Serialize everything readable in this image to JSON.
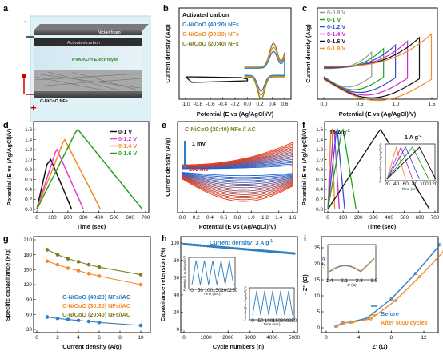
{
  "panels": {
    "a": {
      "label": "a",
      "minus": "-",
      "plus": "+",
      "layers": [
        "Nickel foam",
        "Activated carbon",
        "PVA/KOH Electrolyte",
        "C-NiCoO NFs"
      ]
    },
    "b": {
      "label": "b",
      "xlabel": "Potential (E vs (Ag/AgCl)/V)",
      "ylabel": "Current density (A/g)",
      "xticks": [
        "-1.0",
        "-0.8",
        "-0.6",
        "-0.4",
        "-0.2",
        "0.0",
        "0.2",
        "0.4",
        "0.6"
      ],
      "legend": [
        {
          "text": "Activated carbon",
          "color": "#111111"
        },
        {
          "text": "C-NiCoO (40:20) NFs",
          "color": "#2f7fc1"
        },
        {
          "text": "C-NiCoO (30:30) NFs",
          "color": "#f28c28"
        },
        {
          "text": "C-NiCoO (20:40) NFs",
          "color": "#7f7f1f"
        }
      ]
    },
    "c": {
      "label": "c",
      "xlabel": "Potential (E vs (Ag/AgCl)/V)",
      "ylabel": "Current density (A/g)",
      "xticks": [
        "0.0",
        "0.5",
        "1.0",
        "1.5"
      ],
      "legend": [
        {
          "text": "0-0.8 V",
          "color": "#999999"
        },
        {
          "text": "0-1 V",
          "color": "#1fa31f"
        },
        {
          "text": "0-1.2 V",
          "color": "#2f4fd8"
        },
        {
          "text": "0-1.4 V",
          "color": "#d02ad0"
        },
        {
          "text": "0-1.6 V",
          "color": "#111111"
        },
        {
          "text": "0-1.8 V",
          "color": "#f28c28"
        }
      ]
    },
    "d": {
      "label": "d",
      "xlabel": "Time (sec)",
      "ylabel": "Potential (E vs (Ag/AgCl)/V)",
      "xticks": [
        "0",
        "100",
        "200",
        "300",
        "400",
        "500",
        "600",
        "700"
      ],
      "yticks": [
        "0.0",
        "0.2",
        "0.4",
        "0.6",
        "0.8",
        "1.0",
        "1.2",
        "1.4",
        "1.6"
      ],
      "legend": [
        {
          "text": "0-1 V",
          "color": "#111111"
        },
        {
          "text": "0-1.2 V",
          "color": "#e83cc8"
        },
        {
          "text": "0-1.4 V",
          "color": "#f28c28"
        },
        {
          "text": "0-1.6 V",
          "color": "#1fa31f"
        }
      ]
    },
    "e": {
      "label": "e",
      "title": "C-NiCoO (20:40) NFs // AC",
      "xlabel": "Potential (E vs (Ag/AgCl)/V)",
      "ylabel": "Current density (A/g)",
      "xticks": [
        "0.0",
        "0.2",
        "0.4",
        "0.6",
        "0.8",
        "1.0",
        "1.2",
        "1.4",
        "1.6"
      ],
      "annot_low": "1 mV",
      "annot_high": "100 mV"
    },
    "f": {
      "label": "f",
      "xlabel": "Time (sec)",
      "ylabel": "Potential (E vs (Ag/AgCl)/V)",
      "xticks": [
        "0",
        "100",
        "200",
        "300",
        "400",
        "500",
        "600",
        "700"
      ],
      "yticks": [
        "0.0",
        "0.2",
        "0.4",
        "0.6",
        "0.8",
        "1.0",
        "1.2",
        "1.4",
        "1.6"
      ],
      "annot_high": "10 A g",
      "annot_low": "1 A g",
      "sup": "-1",
      "inset_xlabel": "Time (sec)",
      "inset_ylabel": "Potential (E vs (Ag/AgCl)/V)",
      "inset_xticks": [
        "20",
        "40",
        "60",
        "80",
        "100",
        "120"
      ]
    },
    "g": {
      "label": "g",
      "xlabel": "Current density (A/g)",
      "ylabel": "Specific capacitance (F/g)",
      "xticks": [
        "0",
        "2",
        "4",
        "6",
        "8",
        "10"
      ],
      "yticks": [
        "30",
        "60",
        "90",
        "120",
        "150",
        "180",
        "210"
      ],
      "legend": [
        {
          "text": "C-NiCoO (40:20) NFs//AC",
          "color": "#2f7fc1"
        },
        {
          "text": "C-NiCoO (30:30) NFs//AC",
          "color": "#f28c28"
        },
        {
          "text": "C-NiCoO (20:40) NFs//AC",
          "color": "#7f7f1f"
        }
      ]
    },
    "h": {
      "label": "h",
      "title": "Current density: 3 A g",
      "sup": "-1",
      "xlabel": "Cycle numbers (n)",
      "ylabel": "Capacitance retension (%)",
      "xticks": [
        "0",
        "1000",
        "2000",
        "3000",
        "4000",
        "5000"
      ],
      "yticks": [
        "0",
        "20",
        "40",
        "60",
        "80",
        "100"
      ],
      "inset_xlabel": "Time (sec)",
      "inset_ylabel": "Potential (E vs Ag/AgCl)/V",
      "inset_xticks": [
        "0",
        "50",
        "100",
        "150",
        "200",
        "250"
      ]
    },
    "i": {
      "label": "i",
      "xlabel": "Z' (Ω)",
      "ylabel": "- Z'' (Ω)",
      "xticks": [
        "0",
        "4",
        "8",
        "12"
      ],
      "yticks": [
        "0",
        "5",
        "10",
        "15",
        "20",
        "25"
      ],
      "legend": [
        {
          "text": "Before",
          "color": "#2f7fc1"
        },
        {
          "text": "After 5000 cycles",
          "color": "#f28c28"
        }
      ],
      "inset_xlabel": "Z' (Ω)",
      "inset_ylabel": "- Z'' (Ω)",
      "inset_xticks": [
        "1.4",
        "2.1",
        "2.8",
        "3.5"
      ]
    }
  },
  "chart_data": [
    {
      "panel": "b",
      "type": "line",
      "title": "",
      "xlabel": "Potential (E vs (Ag/AgCl)/V)",
      "ylabel": "Current density (A/g)",
      "xlim": [
        -1.1,
        0.7
      ],
      "series": [
        {
          "name": "Activated carbon",
          "x": [
            -1.0,
            0.0
          ],
          "y": [
            0,
            0
          ]
        },
        {
          "name": "C-NiCoO (40:20) NFs",
          "x": [
            -0.05,
            0.6
          ],
          "y": [
            0,
            0
          ]
        },
        {
          "name": "C-NiCoO (30:30) NFs",
          "x": [
            -0.05,
            0.6
          ],
          "y": [
            0,
            0
          ]
        },
        {
          "name": "C-NiCoO (20:40) NFs",
          "x": [
            -0.05,
            0.6
          ],
          "y": [
            0,
            0
          ]
        }
      ]
    },
    {
      "panel": "c",
      "type": "line",
      "xlabel": "Potential (E vs (Ag/AgCl)/V)",
      "ylabel": "Current density (A/g)",
      "xlim": [
        -0.1,
        1.9
      ],
      "series": [
        {
          "name": "0-0.8 V",
          "x": [
            0,
            0.8
          ]
        },
        {
          "name": "0-1 V",
          "x": [
            0,
            1.0
          ]
        },
        {
          "name": "0-1.2 V",
          "x": [
            0,
            1.2
          ]
        },
        {
          "name": "0-1.4 V",
          "x": [
            0,
            1.4
          ]
        },
        {
          "name": "0-1.6 V",
          "x": [
            0,
            1.6
          ]
        },
        {
          "name": "0-1.8 V",
          "x": [
            0,
            1.8
          ]
        }
      ]
    },
    {
      "panel": "d",
      "type": "line",
      "xlabel": "Time (sec)",
      "ylabel": "Potential (E vs (Ag/AgCl)/V)",
      "xlim": [
        0,
        700
      ],
      "ylim": [
        0,
        1.8
      ],
      "series": [
        {
          "name": "0-1 V",
          "x": [
            0,
            65,
            90,
            225
          ],
          "y": [
            0,
            0.9,
            1.0,
            0
          ]
        },
        {
          "name": "0-1.2 V",
          "x": [
            0,
            120,
            130,
            300
          ],
          "y": [
            0,
            1.15,
            1.2,
            0
          ]
        },
        {
          "name": "0-1.4 V",
          "x": [
            0,
            170,
            180,
            410
          ],
          "y": [
            0,
            1.35,
            1.4,
            0
          ]
        },
        {
          "name": "0-1.6 V",
          "x": [
            0,
            250,
            265,
            680
          ],
          "y": [
            0,
            1.55,
            1.6,
            0
          ]
        }
      ]
    },
    {
      "panel": "f",
      "type": "line",
      "xlabel": "Time (sec)",
      "ylabel": "Potential (E vs (Ag/AgCl)/V)",
      "xlim": [
        0,
        700
      ],
      "ylim": [
        0,
        1.8
      ],
      "series": [
        {
          "x": [
            0,
            20,
            28,
            45
          ],
          "y": [
            0,
            1.55,
            1.6,
            0
          ]
        },
        {
          "x": [
            0,
            35,
            42,
            75
          ],
          "y": [
            0,
            1.55,
            1.6,
            0
          ]
        },
        {
          "x": [
            0,
            55,
            62,
            110
          ],
          "y": [
            0,
            1.55,
            1.6,
            0
          ]
        },
        {
          "x": [
            0,
            90,
            100,
            185
          ],
          "y": [
            0,
            1.55,
            1.6,
            0
          ]
        },
        {
          "x": [
            0,
            330,
            345,
            665
          ],
          "y": [
            0,
            1.55,
            1.6,
            0
          ]
        }
      ]
    },
    {
      "panel": "g",
      "type": "line",
      "xlabel": "Current density (A/g)",
      "ylabel": "Specific capacitance (F/g)",
      "xlim": [
        0,
        11
      ],
      "ylim": [
        30,
        210
      ],
      "series": [
        {
          "name": "C-NiCoO (40:20) NFs//AC",
          "x": [
            1,
            2,
            3,
            4,
            5,
            6,
            10
          ],
          "y": [
            55,
            52,
            50,
            48,
            46,
            44,
            38
          ]
        },
        {
          "name": "C-NiCoO (30:30) NFs//AC",
          "x": [
            1,
            2,
            3,
            4,
            5,
            6,
            10
          ],
          "y": [
            167,
            160,
            153,
            148,
            142,
            137,
            120
          ]
        },
        {
          "name": "C-NiCoO (20:40) NFs//AC",
          "x": [
            1,
            2,
            3,
            4,
            5,
            6,
            10
          ],
          "y": [
            190,
            180,
            172,
            166,
            160,
            155,
            140
          ]
        }
      ]
    },
    {
      "panel": "h",
      "type": "scatter",
      "xlabel": "Cycle numbers (n)",
      "ylabel": "Capacitance retension (%)",
      "xlim": [
        0,
        5000
      ],
      "ylim": [
        0,
        105
      ],
      "series": [
        {
          "x": [
            0,
            1000,
            2000,
            3000,
            4000,
            5000
          ],
          "y": [
            100,
            98,
            96,
            94,
            92,
            89
          ]
        }
      ]
    },
    {
      "panel": "i",
      "type": "line",
      "xlabel": "Z' (Ω)",
      "ylabel": "- Z'' (Ω)",
      "xlim": [
        0,
        16
      ],
      "ylim": [
        0,
        28
      ],
      "series": [
        {
          "name": "Before",
          "x": [
            1.2,
            2,
            3,
            5,
            8,
            11,
            14
          ],
          "y": [
            0.5,
            1.5,
            1.8,
            3,
            9,
            17,
            26
          ]
        },
        {
          "name": "After 5000 cycles",
          "x": [
            1.3,
            2.2,
            3.3,
            5.5,
            8.5,
            11.5,
            14.5
          ],
          "y": [
            0.5,
            1.5,
            1.8,
            2.8,
            8.5,
            16,
            24
          ]
        }
      ]
    }
  ]
}
